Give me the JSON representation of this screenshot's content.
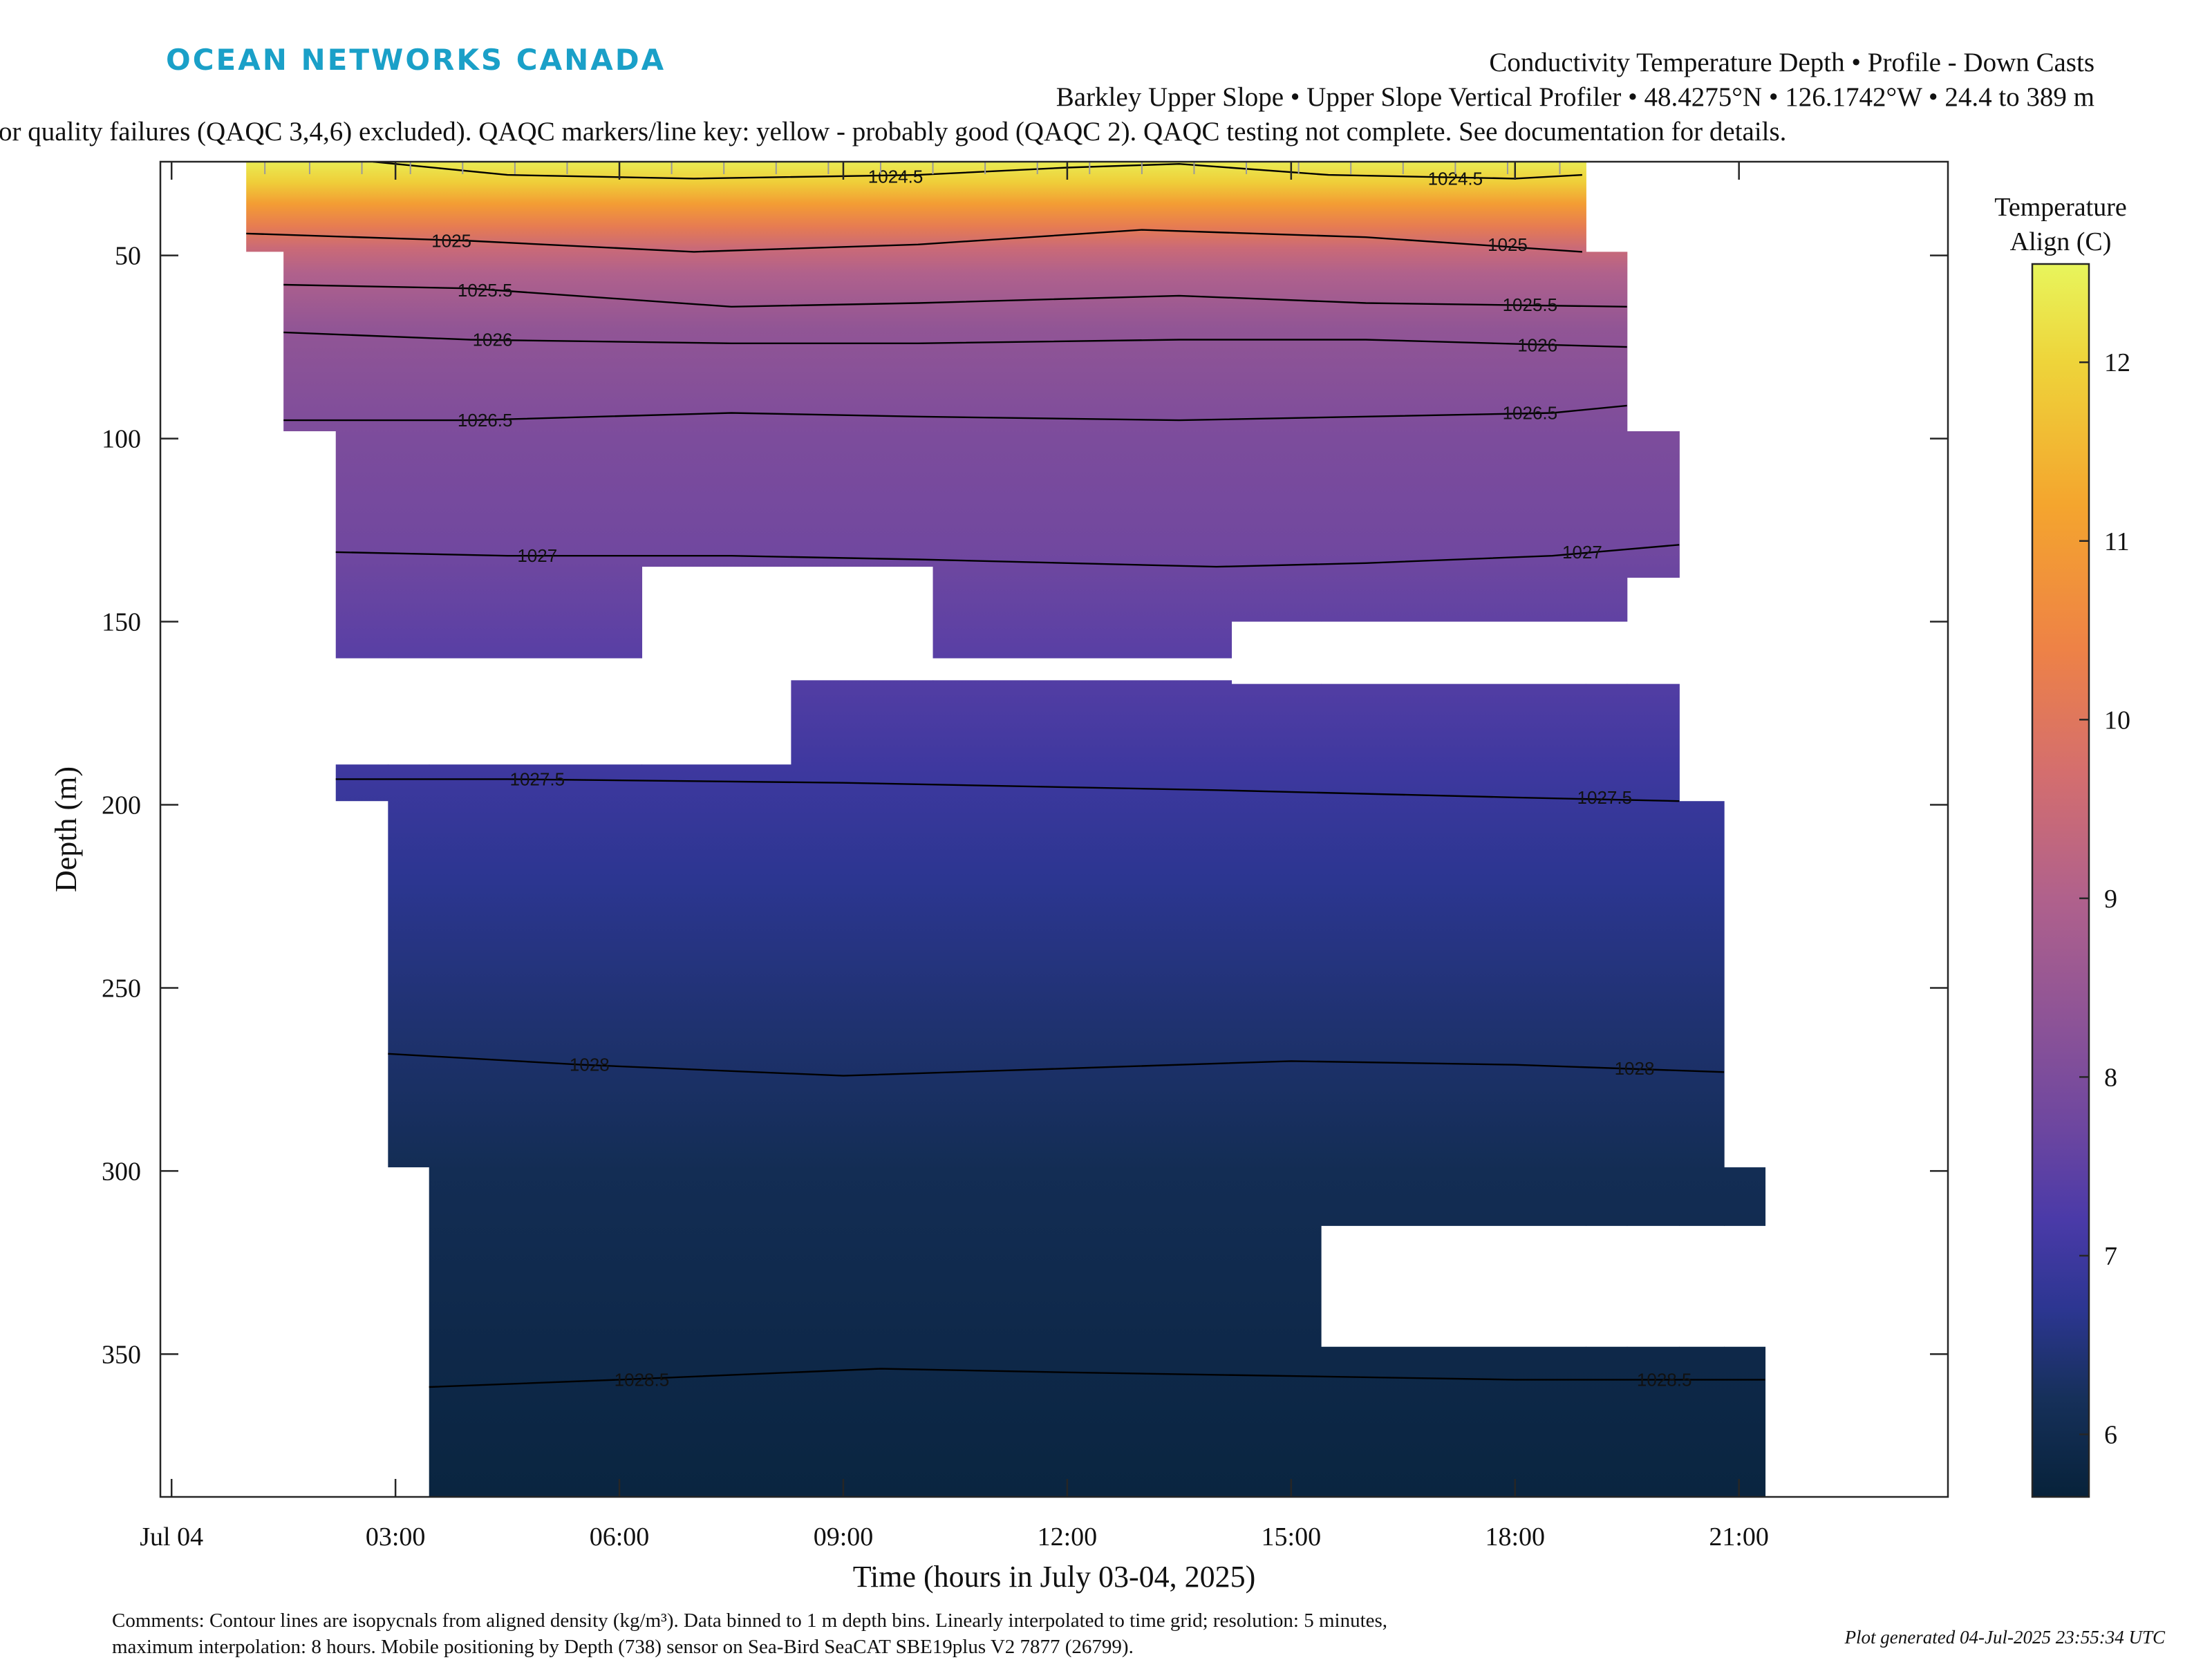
{
  "header": {
    "logo_text": "OCEAN NETWORKS CANADA",
    "logo_color": "#1aa0c8",
    "title_line1": "Conductivity Temperature Depth • Profile - Down Casts",
    "title_line2": "Barkley Upper Slope • Upper Slope Vertical Profiler • 48.4275°N • 126.1742°W • 24.4 to 389 m",
    "title_line3": "or quality failures (QAQC 3,4,6) excluded). QAQC markers/line key: yellow - probably good (QAQC 2). QAQC testing not complete. See documentation for details."
  },
  "footer": {
    "comments_line1": "Comments: Contour lines are isopycnals from aligned density (kg/m³). Data binned to 1 m depth bins. Linearly interpolated to time grid; resolution: 5 minutes,",
    "comments_line2": "maximum interpolation: 8 hours. Mobile positioning by Depth (738) sensor on Sea-Bird SeaCAT SBE19plus V2 7877 (26799).",
    "generated": "Plot generated 04-Jul-2025 23:55:34 UTC"
  },
  "chart_data": {
    "type": "heatmap",
    "xlabel": "Time (hours in July 03-04, 2025)",
    "ylabel": "Depth (m)",
    "x_unit": "hours relative to 00:00 Jul 04, 2025",
    "xlim": [
      -0.15,
      23.8
    ],
    "ylim": [
      389,
      24.4
    ],
    "x_ticks": [
      {
        "value": 0,
        "label": "Jul 04"
      },
      {
        "value": 3,
        "label": "03:00"
      },
      {
        "value": 6,
        "label": "06:00"
      },
      {
        "value": 9,
        "label": "09:00"
      },
      {
        "value": 12,
        "label": "12:00"
      },
      {
        "value": 15,
        "label": "15:00"
      },
      {
        "value": 18,
        "label": "18:00"
      },
      {
        "value": 21,
        "label": "21:00"
      }
    ],
    "y_ticks": [
      {
        "value": 50,
        "label": "50"
      },
      {
        "value": 100,
        "label": "100"
      },
      {
        "value": 150,
        "label": "150"
      },
      {
        "value": 200,
        "label": "200"
      },
      {
        "value": 250,
        "label": "250"
      },
      {
        "value": 300,
        "label": "300"
      },
      {
        "value": 350,
        "label": "350"
      }
    ],
    "colorbar": {
      "title_line1": "Temperature",
      "title_line2": "Align (C)",
      "range": [
        5.65,
        12.55
      ],
      "ticks": [
        {
          "value": 6,
          "label": "6"
        },
        {
          "value": 7,
          "label": "7"
        },
        {
          "value": 8,
          "label": "8"
        },
        {
          "value": 9,
          "label": "9"
        },
        {
          "value": 10,
          "label": "10"
        },
        {
          "value": 11,
          "label": "11"
        },
        {
          "value": 12,
          "label": "12"
        }
      ],
      "color_stops": [
        {
          "t": 5.65,
          "color": "#07223a"
        },
        {
          "t": 6.2,
          "color": "#16305a"
        },
        {
          "t": 6.7,
          "color": "#2c3691"
        },
        {
          "t": 7.2,
          "color": "#4a3aa8"
        },
        {
          "t": 7.7,
          "color": "#6c46a0"
        },
        {
          "t": 8.3,
          "color": "#8c5397"
        },
        {
          "t": 9.0,
          "color": "#b0618c"
        },
        {
          "t": 9.7,
          "color": "#d46e6e"
        },
        {
          "t": 10.4,
          "color": "#ee8246"
        },
        {
          "t": 11.2,
          "color": "#f4a52e"
        },
        {
          "t": 12.0,
          "color": "#eed43a"
        },
        {
          "t": 12.55,
          "color": "#e8f55c"
        }
      ]
    },
    "temperature_profile": [
      {
        "depth": 24.4,
        "temp": 12.4
      },
      {
        "depth": 30,
        "temp": 11.9
      },
      {
        "depth": 36,
        "temp": 11.0
      },
      {
        "depth": 42,
        "temp": 10.2
      },
      {
        "depth": 48,
        "temp": 9.5
      },
      {
        "depth": 55,
        "temp": 9.0
      },
      {
        "depth": 70,
        "temp": 8.4
      },
      {
        "depth": 100,
        "temp": 8.0
      },
      {
        "depth": 130,
        "temp": 7.8
      },
      {
        "depth": 160,
        "temp": 7.4
      },
      {
        "depth": 190,
        "temp": 7.0
      },
      {
        "depth": 220,
        "temp": 6.7
      },
      {
        "depth": 260,
        "temp": 6.4
      },
      {
        "depth": 300,
        "temp": 6.1
      },
      {
        "depth": 350,
        "temp": 5.9
      },
      {
        "depth": 389,
        "temp": 5.75
      }
    ],
    "casts": [
      {
        "x0": 1.0,
        "x1": 1.5,
        "top": 24.4,
        "bottom": 49
      },
      {
        "x0": 1.5,
        "x1": 2.2,
        "top": 24.4,
        "bottom": 98
      },
      {
        "x0": 2.2,
        "x1": 2.9,
        "top": 24.4,
        "bottom": 160
      },
      {
        "x0": 2.2,
        "x1": 2.9,
        "top": 189,
        "bottom": 199
      },
      {
        "x0": 2.9,
        "x1": 3.45,
        "top": 24.4,
        "bottom": 160
      },
      {
        "x0": 2.9,
        "x1": 3.45,
        "top": 189,
        "bottom": 299
      },
      {
        "x0": 3.45,
        "x1": 6.3,
        "top": 24.4,
        "bottom": 160
      },
      {
        "x0": 3.45,
        "x1": 6.3,
        "top": 189,
        "bottom": 389
      },
      {
        "x0": 6.3,
        "x1": 8.3,
        "top": 24.4,
        "bottom": 135
      },
      {
        "x0": 6.3,
        "x1": 8.3,
        "top": 189,
        "bottom": 389
      },
      {
        "x0": 8.3,
        "x1": 10.2,
        "top": 24.4,
        "bottom": 135
      },
      {
        "x0": 8.3,
        "x1": 10.2,
        "top": 166,
        "bottom": 389
      },
      {
        "x0": 10.2,
        "x1": 14.2,
        "top": 24.4,
        "bottom": 160
      },
      {
        "x0": 10.2,
        "x1": 14.2,
        "top": 166,
        "bottom": 389
      },
      {
        "x0": 14.2,
        "x1": 15.4,
        "top": 24.4,
        "bottom": 150
      },
      {
        "x0": 14.2,
        "x1": 15.4,
        "top": 167,
        "bottom": 389
      },
      {
        "x0": 15.4,
        "x1": 18.95,
        "top": 24.4,
        "bottom": 150
      },
      {
        "x0": 15.4,
        "x1": 18.95,
        "top": 167,
        "bottom": 315
      },
      {
        "x0": 15.4,
        "x1": 18.95,
        "top": 348,
        "bottom": 389
      },
      {
        "x0": 18.95,
        "x1": 19.5,
        "top": 49,
        "bottom": 150
      },
      {
        "x0": 18.95,
        "x1": 19.5,
        "top": 167,
        "bottom": 315
      },
      {
        "x0": 18.95,
        "x1": 19.5,
        "top": 348,
        "bottom": 389
      },
      {
        "x0": 19.5,
        "x1": 20.2,
        "top": 98,
        "bottom": 138
      },
      {
        "x0": 19.5,
        "x1": 20.2,
        "top": 167,
        "bottom": 315
      },
      {
        "x0": 19.5,
        "x1": 20.2,
        "top": 348,
        "bottom": 389
      },
      {
        "x0": 20.2,
        "x1": 20.8,
        "top": 199,
        "bottom": 315
      },
      {
        "x0": 20.2,
        "x1": 20.8,
        "top": 348,
        "bottom": 389
      },
      {
        "x0": 20.8,
        "x1": 21.35,
        "top": 299,
        "bottom": 315
      },
      {
        "x0": 20.8,
        "x1": 21.35,
        "top": 348,
        "bottom": 389
      }
    ],
    "isopycnals": [
      {
        "label": "1024.5",
        "points": [
          [
            2.7,
            24.4
          ],
          [
            4.5,
            28
          ],
          [
            7.0,
            29
          ],
          [
            10.0,
            28
          ],
          [
            12.0,
            26
          ],
          [
            13.5,
            25
          ],
          [
            15.5,
            28
          ],
          [
            18.0,
            29
          ],
          [
            18.9,
            28
          ]
        ],
        "label_positions": [
          [
            9.7,
            28.5
          ],
          [
            17.2,
            29
          ]
        ]
      },
      {
        "label": "1025",
        "points": [
          [
            1.0,
            44
          ],
          [
            4.0,
            46
          ],
          [
            7.0,
            49
          ],
          [
            10.0,
            47
          ],
          [
            13.0,
            43
          ],
          [
            16.0,
            45
          ],
          [
            18.9,
            49
          ]
        ],
        "label_positions": [
          [
            3.75,
            46
          ],
          [
            17.9,
            47
          ]
        ]
      },
      {
        "label": "1025.5",
        "points": [
          [
            1.5,
            58
          ],
          [
            4.0,
            59
          ],
          [
            7.5,
            64
          ],
          [
            10.0,
            63
          ],
          [
            13.5,
            61
          ],
          [
            16.0,
            63
          ],
          [
            19.5,
            64
          ]
        ],
        "label_positions": [
          [
            4.2,
            59.5
          ],
          [
            18.2,
            63.5
          ]
        ]
      },
      {
        "label": "1026",
        "points": [
          [
            1.5,
            71
          ],
          [
            4.0,
            73
          ],
          [
            7.5,
            74
          ],
          [
            10.0,
            74
          ],
          [
            13.5,
            73
          ],
          [
            16.0,
            73
          ],
          [
            19.5,
            75
          ]
        ],
        "label_positions": [
          [
            4.3,
            73
          ],
          [
            18.3,
            74.5
          ]
        ]
      },
      {
        "label": "1026.5",
        "points": [
          [
            1.5,
            95
          ],
          [
            4.0,
            95
          ],
          [
            7.5,
            93
          ],
          [
            10.0,
            94
          ],
          [
            13.5,
            95
          ],
          [
            16.0,
            94
          ],
          [
            18.5,
            93
          ],
          [
            19.5,
            91
          ]
        ],
        "label_positions": [
          [
            4.2,
            95
          ],
          [
            18.2,
            93
          ]
        ]
      },
      {
        "label": "1027",
        "points": [
          [
            2.2,
            131
          ],
          [
            4.5,
            132
          ],
          [
            7.5,
            132
          ],
          [
            10.0,
            133
          ],
          [
            14.0,
            135
          ],
          [
            16.0,
            134
          ],
          [
            18.5,
            132
          ],
          [
            20.2,
            129
          ]
        ],
        "label_positions": [
          [
            4.9,
            132
          ],
          [
            18.9,
            131
          ]
        ]
      },
      {
        "label": "1027.5",
        "points": [
          [
            2.2,
            193
          ],
          [
            4.5,
            193
          ],
          [
            9.0,
            194
          ],
          [
            14.0,
            196
          ],
          [
            18.0,
            198
          ],
          [
            20.2,
            199
          ]
        ],
        "label_positions": [
          [
            4.9,
            193
          ],
          [
            19.2,
            198
          ]
        ]
      },
      {
        "label": "1028",
        "points": [
          [
            2.9,
            268
          ],
          [
            5.5,
            271
          ],
          [
            9.0,
            274
          ],
          [
            12.0,
            272
          ],
          [
            15.0,
            270
          ],
          [
            18.0,
            271
          ],
          [
            20.8,
            273
          ]
        ],
        "label_positions": [
          [
            5.6,
            271
          ],
          [
            19.6,
            272
          ]
        ]
      },
      {
        "label": "1028.5",
        "points": [
          [
            3.45,
            359
          ],
          [
            6.0,
            357
          ],
          [
            9.5,
            354
          ],
          [
            12.0,
            355
          ],
          [
            15.0,
            356
          ],
          [
            18.0,
            357
          ],
          [
            21.35,
            357
          ]
        ],
        "label_positions": [
          [
            6.3,
            357
          ],
          [
            20.0,
            357
          ]
        ]
      }
    ],
    "qaqc_tick_color": "#eed43a"
  }
}
